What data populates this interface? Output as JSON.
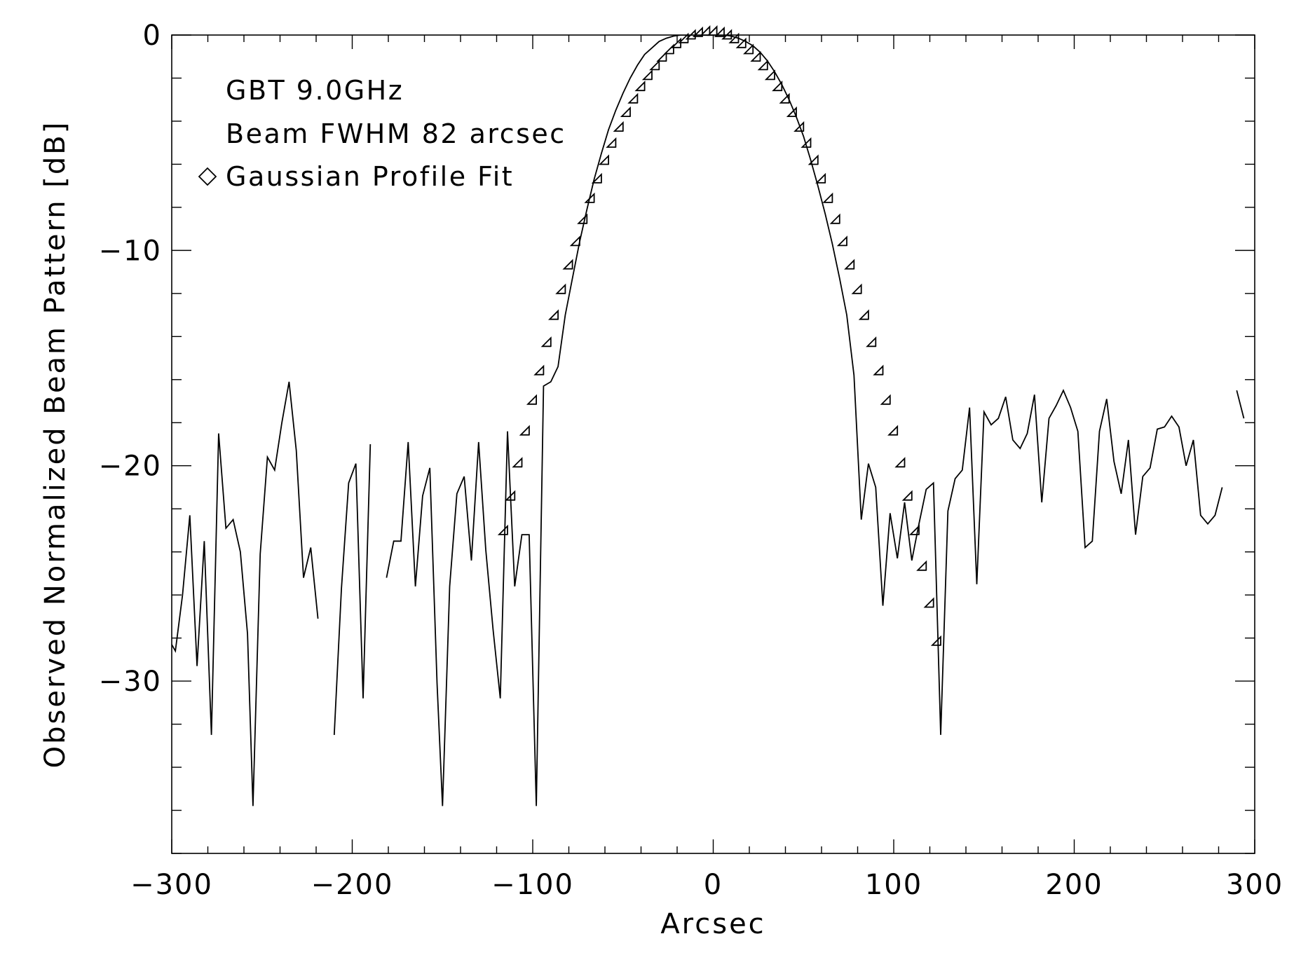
{
  "chart_data": {
    "type": "line",
    "title": "",
    "xlabel": "Arcsec",
    "ylabel": "Observed Normalized Beam Pattern [dB]",
    "xlim": [
      -300,
      300
    ],
    "ylim": [
      -36,
      0
    ],
    "x_ticks": [
      -300,
      -200,
      -100,
      0,
      100,
      200,
      300
    ],
    "x_tick_labels": [
      "−300",
      "−200",
      "−100",
      "0",
      "100",
      "200",
      "300"
    ],
    "y_ticks": [
      0,
      -10,
      -20,
      -30
    ],
    "y_tick_labels": [
      "0",
      "−10",
      "−20",
      "−30"
    ],
    "grid": false,
    "annotations": [
      "GBT 9.0GHz",
      "Beam FWHM 82 arcsec"
    ],
    "legend": {
      "placement": "top-left",
      "entries": [
        "Gaussian Profile Fit"
      ]
    },
    "series": [
      {
        "kind": "line",
        "segments": [
          [
            [
              -300,
              -28.3
            ],
            [
              -298,
              -28.6
            ],
            [
              -294,
              -26
            ],
            [
              -290,
              -22.3
            ],
            [
              -286,
              -29.3
            ],
            [
              -282,
              -23.5
            ],
            [
              -278,
              -32.5
            ],
            [
              -274,
              -18.5
            ],
            [
              -270,
              -22.9
            ],
            [
              -266,
              -22.5
            ],
            [
              -262,
              -24
            ],
            [
              -258,
              -27.8
            ],
            [
              -255,
              -35.8
            ],
            [
              -251,
              -24.1
            ],
            [
              -247,
              -19.6
            ],
            [
              -243,
              -20.2
            ],
            [
              -239,
              -18
            ],
            [
              -235,
              -16.1
            ],
            [
              -231,
              -19.3
            ],
            [
              -227,
              -25.2
            ],
            [
              -223,
              -23.8
            ],
            [
              -219,
              -27.1
            ]
          ],
          [
            [
              -210,
              -32.5
            ],
            [
              -206,
              -25.7
            ],
            [
              -202,
              -20.8
            ],
            [
              -198,
              -19.9
            ],
            [
              -194,
              -30.8
            ],
            [
              -190,
              -19
            ]
          ],
          [
            [
              -181,
              -25.2
            ],
            [
              -177,
              -23.5
            ],
            [
              -173,
              -23.5
            ],
            [
              -169,
              -18.9
            ],
            [
              -165,
              -25.6
            ],
            [
              -161,
              -21.4
            ],
            [
              -157,
              -20.1
            ],
            [
              -153,
              -30.1
            ],
            [
              -150,
              -35.8
            ],
            [
              -146,
              -25.6
            ],
            [
              -142,
              -21.3
            ],
            [
              -138,
              -20.5
            ],
            [
              -134,
              -24.4
            ],
            [
              -130,
              -18.9
            ],
            [
              -126,
              -23.9
            ],
            [
              -122,
              -27.6
            ],
            [
              -118,
              -30.8
            ],
            [
              -114,
              -18.4
            ],
            [
              -110,
              -25.6
            ],
            [
              -106,
              -23.2
            ],
            [
              -102,
              -23.2
            ],
            [
              -98,
              -35.8
            ],
            [
              -94,
              -16.3
            ],
            [
              -90,
              -16.1
            ],
            [
              -86,
              -15.4
            ],
            [
              -82,
              -13
            ],
            [
              -78,
              -11.3
            ],
            [
              -74,
              -9.6
            ],
            [
              -70,
              -8.1
            ],
            [
              -66,
              -6.7
            ],
            [
              -62,
              -5.5
            ],
            [
              -58,
              -4.4
            ],
            [
              -54,
              -3.5
            ],
            [
              -50,
              -2.7
            ],
            [
              -46,
              -2
            ],
            [
              -42,
              -1.4
            ],
            [
              -38,
              -0.9
            ],
            [
              -34,
              -0.6
            ],
            [
              -30,
              -0.3
            ],
            [
              -26,
              -0.15
            ],
            [
              -22,
              -0.05
            ],
            [
              -18,
              0
            ],
            [
              -14,
              0
            ],
            [
              -10,
              0
            ],
            [
              -6,
              0
            ],
            [
              -2,
              0
            ],
            [
              2,
              0
            ],
            [
              6,
              0
            ],
            [
              10,
              -0.05
            ],
            [
              14,
              -0.15
            ],
            [
              18,
              -0.3
            ],
            [
              22,
              -0.5
            ],
            [
              26,
              -0.8
            ],
            [
              30,
              -1.2
            ],
            [
              34,
              -1.7
            ],
            [
              38,
              -2.3
            ],
            [
              42,
              -3
            ],
            [
              46,
              -3.8
            ],
            [
              50,
              -4.7
            ],
            [
              54,
              -5.8
            ],
            [
              58,
              -7
            ],
            [
              62,
              -8.3
            ],
            [
              66,
              -9.7
            ],
            [
              70,
              -11.3
            ],
            [
              74,
              -13
            ],
            [
              78,
              -15.8
            ],
            [
              82,
              -22.5
            ],
            [
              86,
              -19.9
            ],
            [
              90,
              -21
            ],
            [
              94,
              -26.5
            ],
            [
              98,
              -22.2
            ],
            [
              102,
              -24.3
            ],
            [
              106,
              -21.7
            ],
            [
              110,
              -24.4
            ],
            [
              114,
              -22.7
            ],
            [
              118,
              -21.1
            ],
            [
              122,
              -20.8
            ],
            [
              126,
              -32.5
            ],
            [
              130,
              -22.1
            ],
            [
              134,
              -20.6
            ],
            [
              138,
              -20.2
            ],
            [
              142,
              -17.3
            ],
            [
              146,
              -25.5
            ],
            [
              150,
              -17.5
            ],
            [
              154,
              -18.1
            ],
            [
              158,
              -17.8
            ],
            [
              162,
              -16.8
            ],
            [
              166,
              -18.8
            ],
            [
              170,
              -19.2
            ],
            [
              174,
              -18.5
            ],
            [
              178,
              -16.7
            ],
            [
              182,
              -21.7
            ],
            [
              186,
              -17.8
            ],
            [
              190,
              -17.2
            ],
            [
              194,
              -16.5
            ],
            [
              198,
              -17.3
            ],
            [
              202,
              -18.4
            ],
            [
              206,
              -23.8
            ],
            [
              210,
              -23.5
            ],
            [
              214,
              -18.4
            ],
            [
              218,
              -16.9
            ],
            [
              222,
              -19.8
            ],
            [
              226,
              -21.3
            ],
            [
              230,
              -18.8
            ],
            [
              234,
              -23.2
            ],
            [
              238,
              -20.5
            ],
            [
              242,
              -20.1
            ],
            [
              246,
              -18.3
            ],
            [
              250,
              -18.2
            ],
            [
              254,
              -17.7
            ],
            [
              258,
              -18.2
            ],
            [
              262,
              -20
            ],
            [
              266,
              -18.8
            ],
            [
              270,
              -22.3
            ],
            [
              274,
              -22.7
            ],
            [
              278,
              -22.3
            ],
            [
              282,
              -21
            ]
          ],
          [
            [
              290,
              -16.5
            ],
            [
              294,
              -17.8
            ]
          ]
        ]
      },
      {
        "name": "Gaussian Profile Fit",
        "kind": "scatter",
        "marker": "diamond",
        "fwhm": 82,
        "x": [
          -114,
          -110,
          -106,
          -102,
          -98,
          -94,
          -90,
          -86,
          -82,
          -78,
          -74,
          -70,
          -66,
          -62,
          -58,
          -54,
          -50,
          -46,
          -42,
          -38,
          -34,
          -30,
          -26,
          -22,
          -18,
          -14,
          -10,
          -6,
          -2,
          2,
          6,
          10,
          14,
          18,
          22,
          26,
          30,
          34,
          38,
          42,
          46,
          50,
          54,
          58,
          62,
          66,
          70,
          74,
          78,
          82,
          86,
          90,
          94,
          98,
          102,
          106,
          110,
          114,
          118,
          122,
          126
        ]
      }
    ]
  }
}
